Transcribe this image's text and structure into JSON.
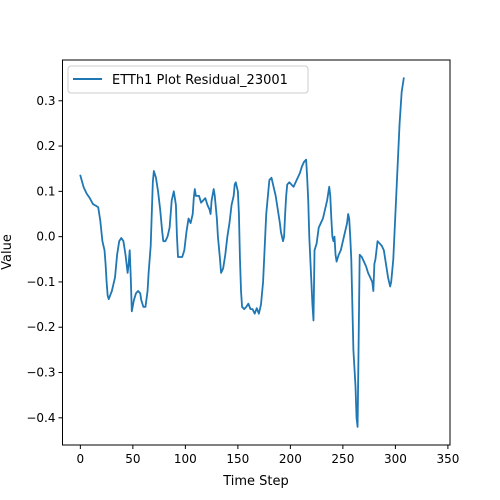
{
  "chart_data": {
    "type": "line",
    "title": "",
    "xlabel": "Time Step",
    "ylabel": "Value",
    "xlim": [
      -17,
      352
    ],
    "ylim": [
      -0.46,
      0.39
    ],
    "xticks": [
      0,
      50,
      100,
      150,
      200,
      250,
      300,
      350
    ],
    "yticks": [
      -0.4,
      -0.3,
      -0.2,
      -0.1,
      0.0,
      0.1,
      0.2,
      0.3
    ],
    "xtick_labels": [
      "0",
      "50",
      "100",
      "150",
      "200",
      "250",
      "300",
      "350"
    ],
    "ytick_labels": [
      "−0.4",
      "−0.3",
      "−0.2",
      "−0.1",
      "0.0",
      "0.1",
      "0.2",
      "0.3"
    ],
    "grid": false,
    "legend": {
      "position": "top-left"
    },
    "series": [
      {
        "name": "ETTh1 Plot Residual_23001",
        "color": "#1f77b4",
        "points": [
          [
            0,
            0.135
          ],
          [
            3,
            0.11
          ],
          [
            6,
            0.095
          ],
          [
            9,
            0.085
          ],
          [
            12,
            0.072
          ],
          [
            15,
            0.068
          ],
          [
            17,
            0.065
          ],
          [
            19,
            0.035
          ],
          [
            21,
            -0.01
          ],
          [
            23,
            -0.03
          ],
          [
            24,
            -0.06
          ],
          [
            25,
            -0.1
          ],
          [
            26,
            -0.13
          ],
          [
            27,
            -0.138
          ],
          [
            30,
            -0.12
          ],
          [
            33,
            -0.09
          ],
          [
            35,
            -0.04
          ],
          [
            37,
            -0.01
          ],
          [
            39,
            -0.003
          ],
          [
            41,
            -0.01
          ],
          [
            43,
            -0.04
          ],
          [
            44,
            -0.06
          ],
          [
            45,
            -0.08
          ],
          [
            46,
            -0.06
          ],
          [
            47,
            -0.03
          ],
          [
            48,
            -0.09
          ],
          [
            49,
            -0.165
          ],
          [
            51,
            -0.14
          ],
          [
            53,
            -0.125
          ],
          [
            55,
            -0.12
          ],
          [
            57,
            -0.125
          ],
          [
            58,
            -0.14
          ],
          [
            60,
            -0.155
          ],
          [
            62,
            -0.155
          ],
          [
            64,
            -0.12
          ],
          [
            65,
            -0.08
          ],
          [
            66,
            -0.05
          ],
          [
            67,
            -0.02
          ],
          [
            68,
            0.05
          ],
          [
            69,
            0.12
          ],
          [
            70,
            0.145
          ],
          [
            72,
            0.13
          ],
          [
            74,
            0.1
          ],
          [
            76,
            0.06
          ],
          [
            78,
            0.01
          ],
          [
            79,
            -0.01
          ],
          [
            81,
            -0.01
          ],
          [
            83,
            0.0
          ],
          [
            85,
            0.02
          ],
          [
            87,
            0.08
          ],
          [
            89,
            0.1
          ],
          [
            91,
            0.07
          ],
          [
            92,
            0.0
          ],
          [
            93,
            -0.045
          ],
          [
            95,
            -0.045
          ],
          [
            97,
            -0.045
          ],
          [
            99,
            -0.03
          ],
          [
            101,
            0.01
          ],
          [
            103,
            0.04
          ],
          [
            105,
            0.03
          ],
          [
            107,
            0.05
          ],
          [
            108,
            0.085
          ],
          [
            109,
            0.105
          ],
          [
            110,
            0.09
          ],
          [
            113,
            0.09
          ],
          [
            115,
            0.075
          ],
          [
            117,
            0.08
          ],
          [
            119,
            0.085
          ],
          [
            121,
            0.07
          ],
          [
            123,
            0.06
          ],
          [
            124,
            0.05
          ],
          [
            125,
            0.08
          ],
          [
            127,
            0.105
          ],
          [
            128,
            0.09
          ],
          [
            130,
            0.04
          ],
          [
            131,
            0.0
          ],
          [
            133,
            -0.05
          ],
          [
            134,
            -0.08
          ],
          [
            136,
            -0.07
          ],
          [
            138,
            -0.04
          ],
          [
            140,
            0.0
          ],
          [
            142,
            0.03
          ],
          [
            144,
            0.07
          ],
          [
            146,
            0.09
          ],
          [
            147,
            0.115
          ],
          [
            148,
            0.12
          ],
          [
            150,
            0.1
          ],
          [
            151,
            0.05
          ],
          [
            152,
            -0.05
          ],
          [
            153,
            -0.12
          ],
          [
            154,
            -0.155
          ],
          [
            156,
            -0.16
          ],
          [
            158,
            -0.155
          ],
          [
            160,
            -0.148
          ],
          [
            162,
            -0.16
          ],
          [
            164,
            -0.16
          ],
          [
            166,
            -0.17
          ],
          [
            168,
            -0.158
          ],
          [
            170,
            -0.17
          ],
          [
            172,
            -0.15
          ],
          [
            174,
            -0.1
          ],
          [
            175,
            -0.05
          ],
          [
            176,
            0.0
          ],
          [
            177,
            0.05
          ],
          [
            179,
            0.1
          ],
          [
            180,
            0.125
          ],
          [
            182,
            0.13
          ],
          [
            184,
            0.11
          ],
          [
            186,
            0.09
          ],
          [
            188,
            0.06
          ],
          [
            190,
            0.03
          ],
          [
            191,
            0.01
          ],
          [
            193,
            -0.01
          ],
          [
            194,
            0.0
          ],
          [
            195,
            0.05
          ],
          [
            196,
            0.09
          ],
          [
            197,
            0.115
          ],
          [
            199,
            0.12
          ],
          [
            201,
            0.115
          ],
          [
            203,
            0.11
          ],
          [
            205,
            0.12
          ],
          [
            207,
            0.13
          ],
          [
            209,
            0.14
          ],
          [
            211,
            0.155
          ],
          [
            213,
            0.165
          ],
          [
            215,
            0.17
          ],
          [
            216,
            0.13
          ],
          [
            217,
            0.08
          ],
          [
            218,
            0.0
          ],
          [
            219,
            -0.05
          ],
          [
            220,
            -0.1
          ],
          [
            221,
            -0.15
          ],
          [
            222,
            -0.185
          ],
          [
            223,
            -0.03
          ],
          [
            225,
            -0.015
          ],
          [
            227,
            0.02
          ],
          [
            229,
            0.03
          ],
          [
            231,
            0.04
          ],
          [
            233,
            0.06
          ],
          [
            235,
            0.08
          ],
          [
            237,
            0.11
          ],
          [
            238,
            0.09
          ],
          [
            239,
            0.04
          ],
          [
            240,
            0.0
          ],
          [
            241,
            -0.01
          ],
          [
            242,
            0.0
          ],
          [
            243,
            -0.04
          ],
          [
            244,
            -0.055
          ],
          [
            246,
            -0.04
          ],
          [
            248,
            -0.03
          ],
          [
            250,
            -0.01
          ],
          [
            252,
            0.01
          ],
          [
            254,
            0.03
          ],
          [
            255,
            0.05
          ],
          [
            256,
            0.04
          ],
          [
            257,
            0.0
          ],
          [
            258,
            -0.05
          ],
          [
            259,
            -0.15
          ],
          [
            260,
            -0.25
          ],
          [
            262,
            -0.33
          ],
          [
            263,
            -0.4
          ],
          [
            264,
            -0.42
          ],
          [
            266,
            -0.04
          ],
          [
            268,
            -0.045
          ],
          [
            270,
            -0.055
          ],
          [
            272,
            -0.065
          ],
          [
            274,
            -0.08
          ],
          [
            276,
            -0.09
          ],
          [
            278,
            -0.1
          ],
          [
            279,
            -0.12
          ],
          [
            280,
            -0.06
          ],
          [
            281,
            -0.05
          ],
          [
            282,
            -0.03
          ],
          [
            283,
            -0.01
          ],
          [
            285,
            -0.015
          ],
          [
            287,
            -0.02
          ],
          [
            289,
            -0.03
          ],
          [
            291,
            -0.06
          ],
          [
            293,
            -0.09
          ],
          [
            295,
            -0.11
          ],
          [
            296,
            -0.1
          ],
          [
            298,
            -0.05
          ],
          [
            300,
            0.05
          ],
          [
            302,
            0.15
          ],
          [
            304,
            0.25
          ],
          [
            306,
            0.32
          ],
          [
            308,
            0.35
          ]
        ]
      }
    ]
  }
}
